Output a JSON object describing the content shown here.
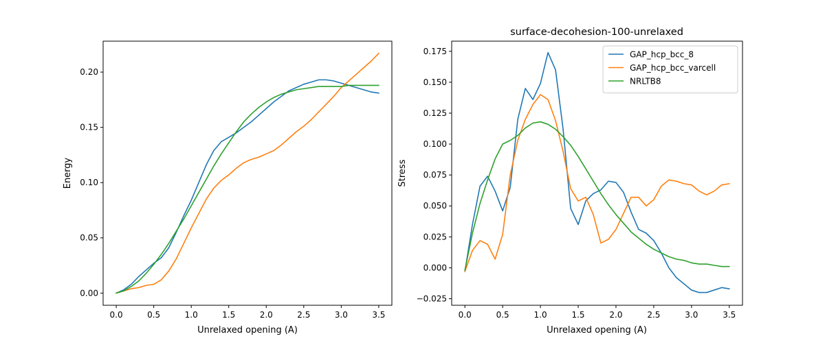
{
  "chart_data": [
    {
      "type": "line",
      "title": "",
      "xlabel": "Unrelaxed opening (A)",
      "ylabel": "Energy",
      "xlim": [
        -0.175,
        3.675
      ],
      "ylim": [
        -0.011,
        0.228
      ],
      "xticks": [
        0.0,
        0.5,
        1.0,
        1.5,
        2.0,
        2.5,
        3.0,
        3.5
      ],
      "xtick_labels": [
        "0.0",
        "0.5",
        "1.0",
        "1.5",
        "2.0",
        "2.5",
        "3.0",
        "3.5"
      ],
      "yticks": [
        0.0,
        0.05,
        0.1,
        0.15,
        0.2
      ],
      "ytick_labels": [
        "0.00",
        "0.05",
        "0.10",
        "0.15",
        "0.20"
      ],
      "grid": false,
      "legend": false,
      "x": [
        0.0,
        0.1,
        0.2,
        0.3,
        0.4,
        0.5,
        0.6,
        0.7,
        0.8,
        0.9,
        1.0,
        1.1,
        1.2,
        1.3,
        1.4,
        1.5,
        1.6,
        1.7,
        1.8,
        1.9,
        2.0,
        2.1,
        2.2,
        2.3,
        2.4,
        2.5,
        2.6,
        2.7,
        2.8,
        2.9,
        3.0,
        3.1,
        3.2,
        3.3,
        3.4,
        3.5
      ],
      "series": [
        {
          "name": "GAP_hcp_bcc_8",
          "color": "#1f77b4",
          "values": [
            0.0,
            0.003,
            0.008,
            0.015,
            0.021,
            0.027,
            0.032,
            0.041,
            0.055,
            0.07,
            0.084,
            0.1,
            0.116,
            0.129,
            0.137,
            0.141,
            0.145,
            0.15,
            0.155,
            0.161,
            0.167,
            0.173,
            0.178,
            0.183,
            0.186,
            0.189,
            0.191,
            0.193,
            0.193,
            0.192,
            0.19,
            0.188,
            0.186,
            0.184,
            0.182,
            0.181
          ]
        },
        {
          "name": "GAP_hcp_bcc_varcell",
          "color": "#ff7f0e",
          "values": [
            0.0,
            0.002,
            0.004,
            0.005,
            0.007,
            0.008,
            0.012,
            0.02,
            0.031,
            0.045,
            0.059,
            0.072,
            0.085,
            0.095,
            0.102,
            0.107,
            0.113,
            0.118,
            0.121,
            0.123,
            0.126,
            0.129,
            0.134,
            0.14,
            0.146,
            0.151,
            0.157,
            0.164,
            0.171,
            0.178,
            0.186,
            0.192,
            0.198,
            0.204,
            0.21,
            0.217
          ]
        },
        {
          "name": "NRLTB8",
          "color": "#2ca02c",
          "values": [
            0.0,
            0.002,
            0.006,
            0.011,
            0.018,
            0.026,
            0.035,
            0.045,
            0.056,
            0.067,
            0.079,
            0.091,
            0.103,
            0.115,
            0.126,
            0.136,
            0.146,
            0.155,
            0.162,
            0.168,
            0.173,
            0.177,
            0.18,
            0.182,
            0.184,
            0.185,
            0.186,
            0.187,
            0.187,
            0.187,
            0.187,
            0.188,
            0.188,
            0.188,
            0.188,
            0.188
          ]
        }
      ]
    },
    {
      "type": "line",
      "title": "surface-decohesion-100-unrelaxed",
      "xlabel": "Unrelaxed opening (A)",
      "ylabel": "Stress",
      "xlim": [
        -0.175,
        3.675
      ],
      "ylim": [
        -0.0303,
        0.1832
      ],
      "xticks": [
        0.0,
        0.5,
        1.0,
        1.5,
        2.0,
        2.5,
        3.0,
        3.5
      ],
      "xtick_labels": [
        "0.0",
        "0.5",
        "1.0",
        "1.5",
        "2.0",
        "2.5",
        "3.0",
        "3.5"
      ],
      "yticks": [
        -0.025,
        0.0,
        0.025,
        0.05,
        0.075,
        0.1,
        0.125,
        0.15,
        0.175
      ],
      "ytick_labels": [
        "−0.025",
        "0.000",
        "0.025",
        "0.050",
        "0.075",
        "0.100",
        "0.125",
        "0.150",
        "0.175"
      ],
      "grid": false,
      "legend": "upper right",
      "x": [
        0.0,
        0.1,
        0.2,
        0.3,
        0.4,
        0.5,
        0.6,
        0.7,
        0.8,
        0.9,
        1.0,
        1.1,
        1.2,
        1.3,
        1.4,
        1.5,
        1.6,
        1.7,
        1.8,
        1.9,
        2.0,
        2.1,
        2.2,
        2.3,
        2.4,
        2.5,
        2.6,
        2.7,
        2.8,
        2.9,
        3.0,
        3.1,
        3.2,
        3.3,
        3.4,
        3.5
      ],
      "series": [
        {
          "name": "GAP_hcp_bcc_8",
          "color": "#1f77b4",
          "values": [
            -0.003,
            0.035,
            0.066,
            0.074,
            0.062,
            0.046,
            0.065,
            0.12,
            0.145,
            0.136,
            0.149,
            0.174,
            0.16,
            0.112,
            0.048,
            0.035,
            0.054,
            0.06,
            0.063,
            0.07,
            0.069,
            0.061,
            0.045,
            0.031,
            0.028,
            0.022,
            0.012,
            0.0,
            -0.008,
            -0.013,
            -0.018,
            -0.02,
            -0.02,
            -0.018,
            -0.016,
            -0.017
          ]
        },
        {
          "name": "GAP_hcp_bcc_varcell",
          "color": "#ff7f0e",
          "values": [
            -0.003,
            0.014,
            0.022,
            0.019,
            0.007,
            0.027,
            0.075,
            0.103,
            0.12,
            0.132,
            0.14,
            0.136,
            0.119,
            0.094,
            0.064,
            0.054,
            0.057,
            0.043,
            0.02,
            0.023,
            0.031,
            0.044,
            0.057,
            0.057,
            0.05,
            0.055,
            0.066,
            0.071,
            0.07,
            0.068,
            0.067,
            0.062,
            0.059,
            0.062,
            0.067,
            0.068
          ]
        },
        {
          "name": "NRLTB8",
          "color": "#2ca02c",
          "values": [
            -0.002,
            0.028,
            0.052,
            0.071,
            0.088,
            0.1,
            0.103,
            0.107,
            0.113,
            0.117,
            0.118,
            0.116,
            0.112,
            0.106,
            0.099,
            0.09,
            0.08,
            0.07,
            0.06,
            0.051,
            0.043,
            0.036,
            0.029,
            0.024,
            0.019,
            0.015,
            0.012,
            0.009,
            0.007,
            0.006,
            0.004,
            0.003,
            0.003,
            0.002,
            0.001,
            0.001
          ]
        }
      ]
    }
  ]
}
